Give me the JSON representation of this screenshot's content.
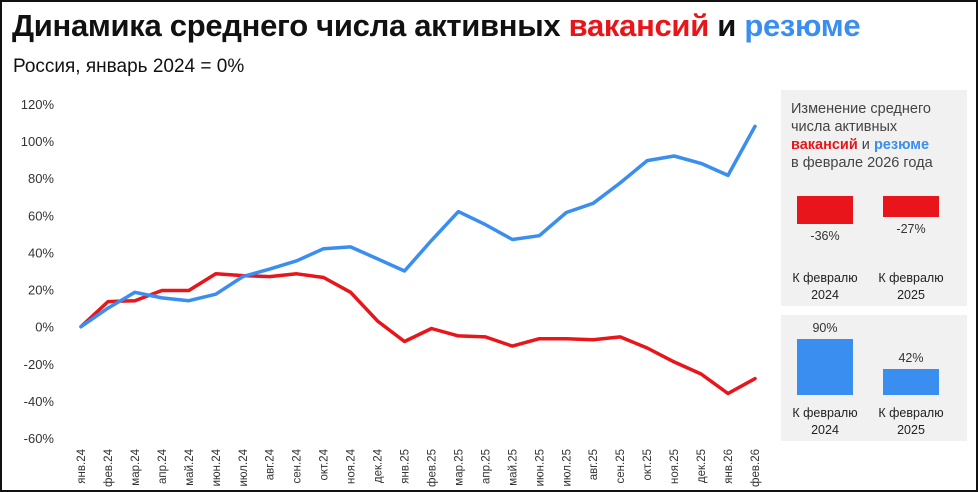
{
  "title": {
    "part1": "Динамика среднего числа активных ",
    "part2": "вакансий",
    "part3": " и ",
    "part4": "резюме"
  },
  "subtitle": "Россия, январь 2024 = 0%",
  "colors": {
    "vacancies": "#e8161b",
    "resumes": "#3a8ef0"
  },
  "chart_data": {
    "type": "line",
    "categories": [
      "янв.24",
      "фев.24",
      "мар.24",
      "апр.24",
      "май.24",
      "июн.24",
      "июл.24",
      "авг.24",
      "сен.24",
      "окт.24",
      "ноя.24",
      "дек.24",
      "янв.25",
      "фев.25",
      "мар.25",
      "апр.25",
      "май.25",
      "июн.25",
      "июл.25",
      "авг.25",
      "сен.25",
      "окт.25",
      "ноя.25",
      "дек.25",
      "янв.26",
      "фев.26"
    ],
    "series": [
      {
        "key": "vacancies",
        "values": [
          0,
          13.5,
          14,
          19.5,
          19.5,
          28.5,
          27.5,
          27,
          28.5,
          26.5,
          18.5,
          3,
          -8,
          -1,
          -5,
          -5.5,
          -10.5,
          -6.5,
          -6.5,
          -7,
          -5.5,
          -11.5,
          -19,
          -25.5,
          -36,
          -28
        ]
      },
      {
        "key": "resumes",
        "values": [
          0,
          10,
          18.5,
          15.5,
          14,
          17.5,
          27,
          31,
          35.5,
          42,
          43,
          36.5,
          30,
          46.5,
          62,
          55,
          47,
          49,
          61.5,
          66.5,
          77.5,
          89.5,
          92,
          88,
          81.5,
          108
        ]
      }
    ],
    "ylim": [
      -60,
      120
    ],
    "yticks": [
      -60,
      -40,
      -20,
      0,
      20,
      40,
      60,
      80,
      100,
      120
    ],
    "ytick_labels": [
      "-60%",
      "-40%",
      "-20%",
      "0%",
      "20%",
      "40%",
      "60%",
      "80%",
      "100%",
      "120%"
    ],
    "grid": false
  },
  "side": {
    "heading": {
      "l1": "Изменение среднего",
      "l2": "числа активных",
      "vac": "вакансий",
      "and": " и ",
      "res": "резюме",
      "l4": "в феврале 2026 года"
    },
    "vacancies": [
      {
        "value": -36,
        "value_label": "-36%",
        "l1": "К февралю",
        "l2": "2024"
      },
      {
        "value": -27,
        "value_label": "-27%",
        "l1": "К февралю",
        "l2": "2025"
      }
    ],
    "resumes": [
      {
        "value": 90,
        "value_label": "90%",
        "l1": "К февралю",
        "l2": "2024"
      },
      {
        "value": 42,
        "value_label": "42%",
        "l1": "К февралю",
        "l2": "2025"
      }
    ]
  }
}
